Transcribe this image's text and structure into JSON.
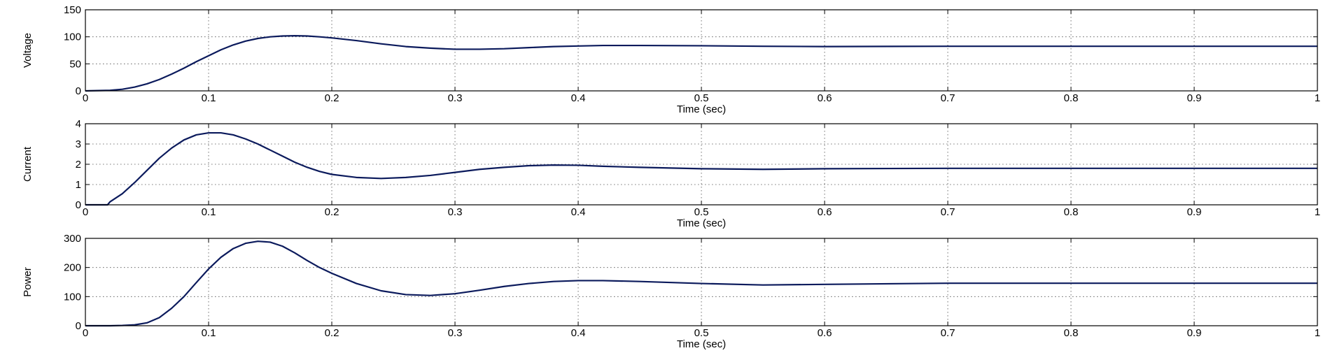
{
  "chart_data": [
    {
      "type": "line",
      "ylabel": "Voltage",
      "xlabel": "Time (sec)",
      "xlim": [
        0,
        1
      ],
      "ylim": [
        0,
        150
      ],
      "xticks": [
        0,
        0.1,
        0.2,
        0.3,
        0.4,
        0.5,
        0.6,
        0.7,
        0.8,
        0.9,
        1
      ],
      "xtick_labels": [
        "0",
        "0.1",
        "0.2",
        "0.3",
        "0.4",
        "0.5",
        "0.6",
        "0.7",
        "0.8",
        "0.9",
        "1"
      ],
      "yticks": [
        0,
        50,
        100,
        150
      ],
      "ytick_labels": [
        "0",
        "50",
        "100",
        "150"
      ],
      "grid": true,
      "color": "#0b1a5c",
      "series": [
        {
          "x": [
            0,
            0.02,
            0.03,
            0.04,
            0.05,
            0.06,
            0.07,
            0.08,
            0.09,
            0.1,
            0.11,
            0.12,
            0.13,
            0.14,
            0.15,
            0.16,
            0.17,
            0.18,
            0.19,
            0.2,
            0.22,
            0.24,
            0.26,
            0.28,
            0.3,
            0.32,
            0.34,
            0.36,
            0.38,
            0.4,
            0.42,
            0.45,
            0.5,
            0.55,
            0.6,
            0.7,
            0.8,
            0.9,
            1.0
          ],
          "y": [
            0,
            1,
            3,
            7,
            13,
            21,
            31,
            42,
            54,
            65,
            76,
            85,
            92,
            97,
            100,
            101.5,
            102,
            101.5,
            100,
            98,
            93,
            87,
            82,
            79,
            77,
            77,
            78,
            80,
            82,
            83,
            84,
            84,
            83.5,
            82.5,
            82,
            82.5,
            82.5,
            82.5,
            82.5
          ]
        }
      ]
    },
    {
      "type": "line",
      "ylabel": "Current",
      "xlabel": "Time (sec)",
      "xlim": [
        0,
        1
      ],
      "ylim": [
        0,
        4
      ],
      "xticks": [
        0,
        0.1,
        0.2,
        0.3,
        0.4,
        0.5,
        0.6,
        0.7,
        0.8,
        0.9,
        1
      ],
      "xtick_labels": [
        "0",
        "0.1",
        "0.2",
        "0.3",
        "0.4",
        "0.5",
        "0.6",
        "0.7",
        "0.8",
        "0.9",
        "1"
      ],
      "yticks": [
        0,
        1,
        2,
        3,
        4
      ],
      "ytick_labels": [
        "0",
        "1",
        "2",
        "3",
        "4"
      ],
      "grid": true,
      "color": "#0b1a5c",
      "series": [
        {
          "x": [
            0,
            0.018,
            0.02,
            0.03,
            0.04,
            0.05,
            0.06,
            0.07,
            0.08,
            0.09,
            0.1,
            0.11,
            0.12,
            0.13,
            0.14,
            0.15,
            0.16,
            0.17,
            0.18,
            0.19,
            0.2,
            0.22,
            0.24,
            0.26,
            0.28,
            0.3,
            0.32,
            0.34,
            0.36,
            0.38,
            0.4,
            0.42,
            0.45,
            0.5,
            0.55,
            0.6,
            0.7,
            0.8,
            0.9,
            1.0
          ],
          "y": [
            0,
            0,
            0.15,
            0.55,
            1.1,
            1.7,
            2.3,
            2.8,
            3.2,
            3.45,
            3.55,
            3.55,
            3.45,
            3.25,
            3.0,
            2.7,
            2.4,
            2.1,
            1.85,
            1.65,
            1.5,
            1.35,
            1.3,
            1.35,
            1.45,
            1.6,
            1.75,
            1.85,
            1.93,
            1.96,
            1.95,
            1.9,
            1.85,
            1.78,
            1.75,
            1.78,
            1.8,
            1.8,
            1.8,
            1.8
          ]
        }
      ]
    },
    {
      "type": "line",
      "ylabel": "Power",
      "xlabel": "Time (sec)",
      "xlim": [
        0,
        1
      ],
      "ylim": [
        0,
        300
      ],
      "xticks": [
        0,
        0.1,
        0.2,
        0.3,
        0.4,
        0.5,
        0.6,
        0.7,
        0.8,
        0.9,
        1
      ],
      "xtick_labels": [
        "0",
        "0.1",
        "0.2",
        "0.3",
        "0.4",
        "0.5",
        "0.6",
        "0.7",
        "0.8",
        "0.9",
        "1"
      ],
      "yticks": [
        0,
        100,
        200,
        300
      ],
      "ytick_labels": [
        "0",
        "100",
        "200",
        "300"
      ],
      "grid": true,
      "color": "#0b1a5c",
      "series": [
        {
          "x": [
            0,
            0.02,
            0.03,
            0.04,
            0.05,
            0.06,
            0.07,
            0.08,
            0.09,
            0.1,
            0.11,
            0.12,
            0.13,
            0.14,
            0.15,
            0.16,
            0.17,
            0.18,
            0.19,
            0.2,
            0.22,
            0.24,
            0.26,
            0.28,
            0.3,
            0.32,
            0.34,
            0.36,
            0.38,
            0.4,
            0.42,
            0.45,
            0.5,
            0.55,
            0.6,
            0.7,
            0.8,
            0.9,
            1.0
          ],
          "y": [
            0,
            0,
            1,
            3,
            10,
            28,
            60,
            100,
            148,
            195,
            235,
            265,
            283,
            290,
            287,
            273,
            250,
            224,
            200,
            180,
            145,
            120,
            107,
            104,
            110,
            122,
            135,
            145,
            152,
            155,
            155,
            152,
            145,
            140,
            142,
            146,
            146,
            146,
            146
          ]
        }
      ]
    }
  ]
}
